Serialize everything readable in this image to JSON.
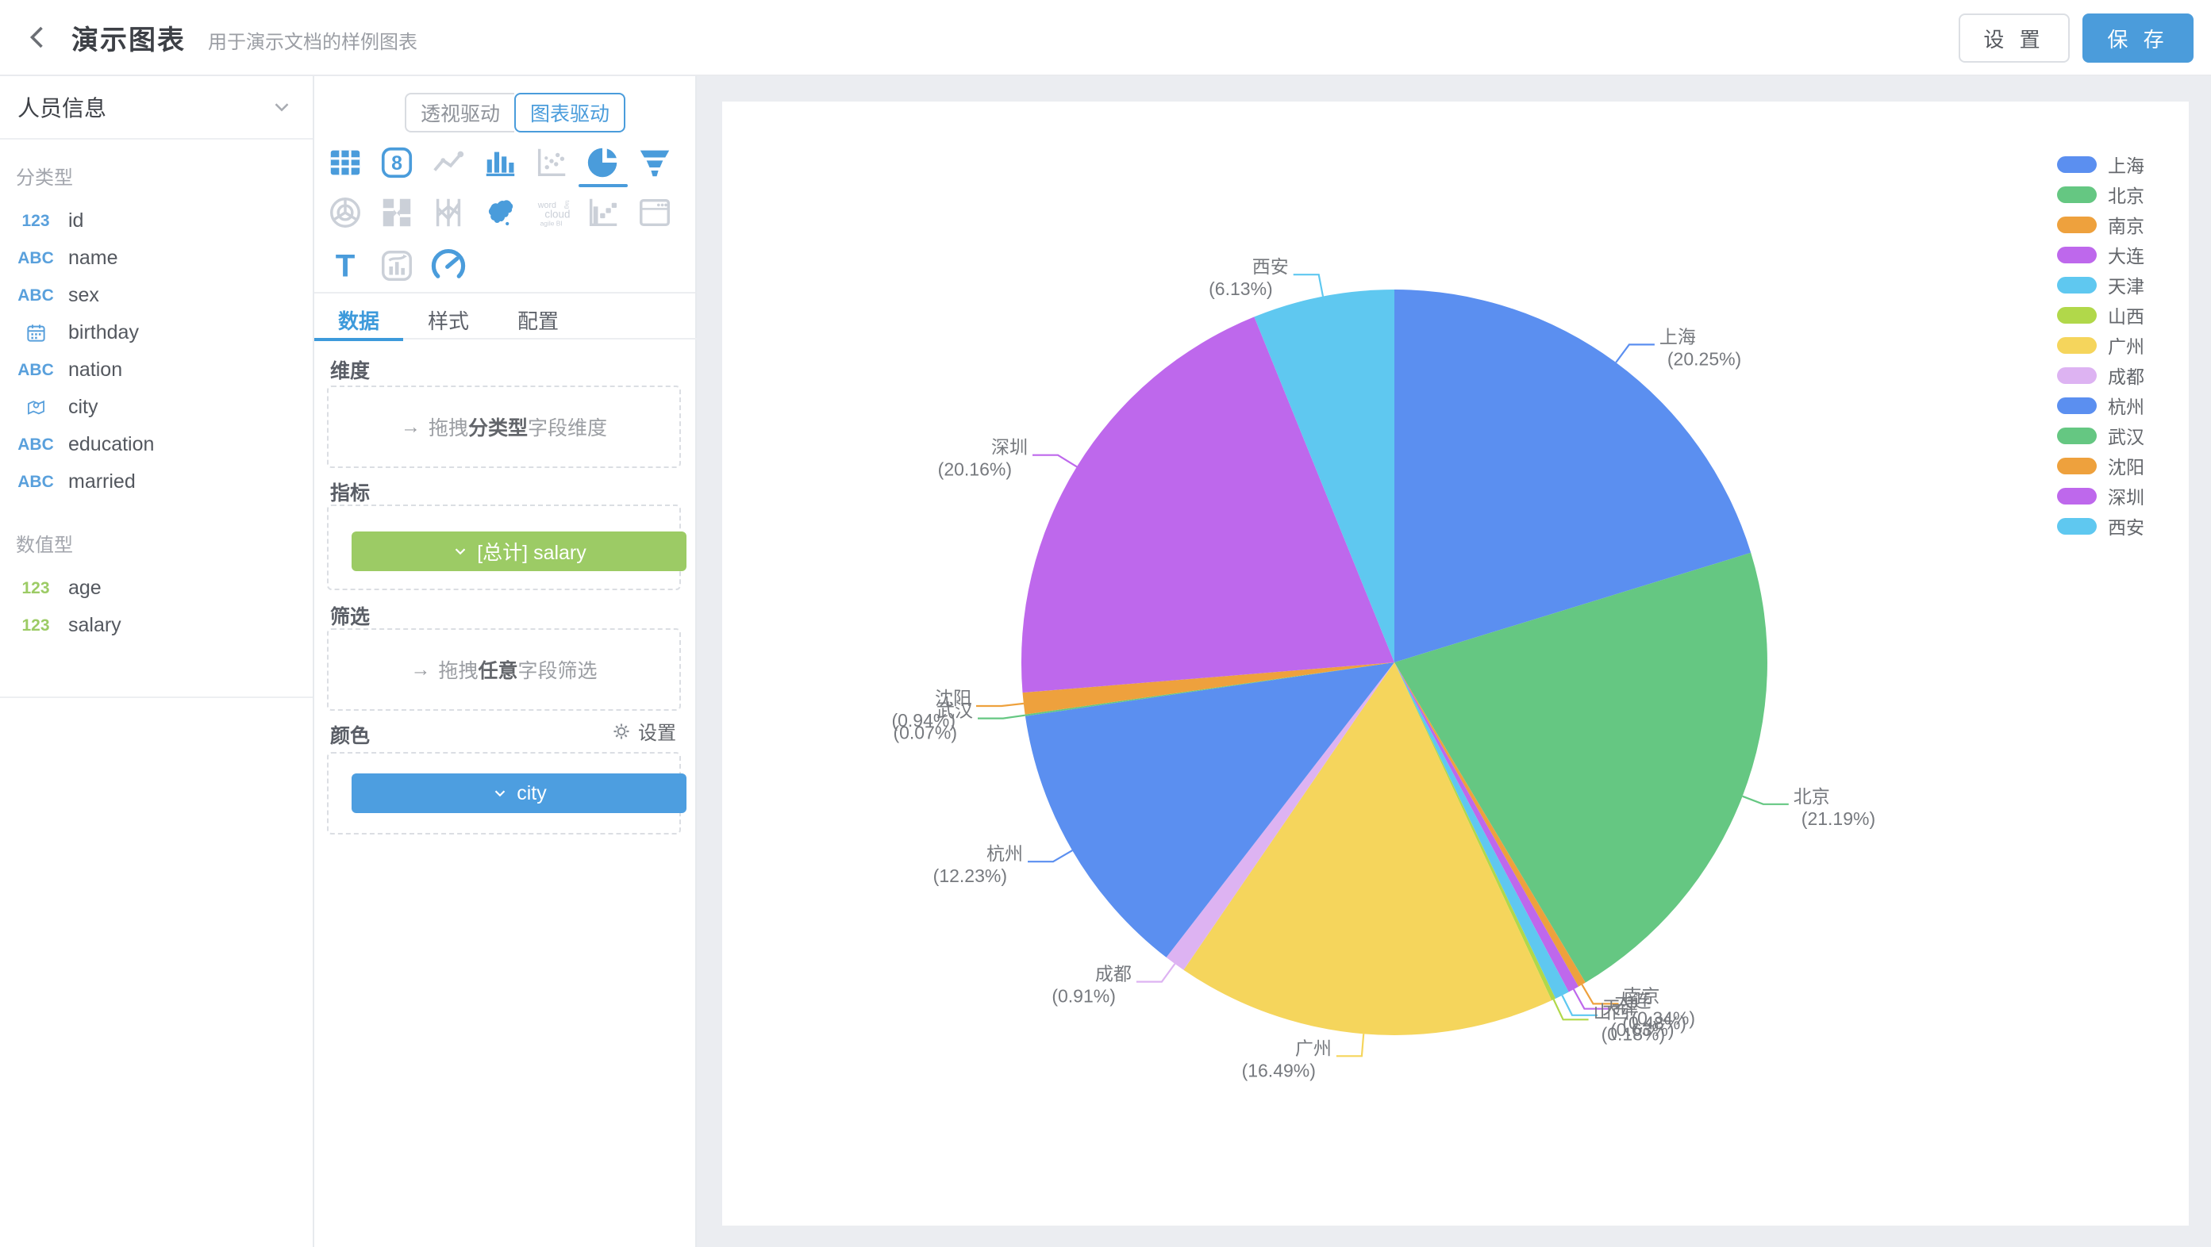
{
  "header": {
    "title": "演示图表",
    "subtitle": "用于演示文档的样例图表",
    "settings_label": "设 置",
    "save_label": "保 存"
  },
  "sidebar": {
    "dataset_name": "人员信息",
    "categorical": {
      "label": "分类型",
      "fields": [
        {
          "icon": "123",
          "icon_kind": "num-blue",
          "label": "id"
        },
        {
          "icon": "ABC",
          "icon_kind": "text",
          "label": "name"
        },
        {
          "icon": "ABC",
          "icon_kind": "text",
          "label": "sex"
        },
        {
          "icon": "calendar",
          "icon_kind": "date",
          "label": "birthday"
        },
        {
          "icon": "ABC",
          "icon_kind": "text",
          "label": "nation"
        },
        {
          "icon": "map-pin",
          "icon_kind": "geo",
          "label": "city"
        },
        {
          "icon": "ABC",
          "icon_kind": "text",
          "label": "education"
        },
        {
          "icon": "ABC",
          "icon_kind": "text",
          "label": "married"
        }
      ]
    },
    "numeric": {
      "label": "数值型",
      "fields": [
        {
          "icon": "123",
          "icon_kind": "num-green",
          "label": "age"
        },
        {
          "icon": "123",
          "icon_kind": "num-green",
          "label": "salary"
        }
      ]
    }
  },
  "panel": {
    "mode_toggle": {
      "options": [
        "透视驱动",
        "图表驱动"
      ],
      "active": "图表驱动"
    },
    "chart_types": [
      {
        "name": "table-chart",
        "state": "enabled"
      },
      {
        "name": "metric-card",
        "state": "enabled"
      },
      {
        "name": "line-chart",
        "state": "disabled"
      },
      {
        "name": "bar-chart",
        "state": "enabled"
      },
      {
        "name": "scatter-chart",
        "state": "disabled"
      },
      {
        "name": "pie-chart",
        "state": "selected"
      },
      {
        "name": "funnel-chart",
        "state": "enabled"
      },
      {
        "name": "radar-chart",
        "state": "disabled"
      },
      {
        "name": "sankey-chart",
        "state": "disabled"
      },
      {
        "name": "parallel-chart",
        "state": "disabled"
      },
      {
        "name": "china-map",
        "state": "enabled"
      },
      {
        "name": "word-cloud",
        "state": "disabled"
      },
      {
        "name": "waterfall-chart",
        "state": "disabled"
      },
      {
        "name": "iframe-widget",
        "state": "disabled"
      },
      {
        "name": "text-widget",
        "state": "enabled"
      },
      {
        "name": "combo-chart",
        "state": "disabled"
      },
      {
        "name": "gauge-chart",
        "state": "enabled"
      }
    ],
    "tabs": {
      "items": [
        "数据",
        "样式",
        "配置"
      ],
      "active": "数据"
    },
    "dimension": {
      "label": "维度",
      "placeholder_prefix": "拖拽",
      "placeholder_bold": "分类型",
      "placeholder_suffix": "字段维度"
    },
    "metric": {
      "label": "指标",
      "pill": "[总计] salary",
      "pill_color": "#9CCB65"
    },
    "filter": {
      "label": "筛选",
      "placeholder_prefix": "拖拽",
      "placeholder_bold": "任意",
      "placeholder_suffix": "字段筛选"
    },
    "color": {
      "label": "颜色",
      "settings_label": "设置",
      "pill": "city",
      "pill_color": "#4D9EE0"
    }
  },
  "chart_data": {
    "type": "pie",
    "category_field": "city",
    "value_field": "salary",
    "categories": [
      "上海",
      "北京",
      "南京",
      "大连",
      "天津",
      "山西",
      "广州",
      "成都",
      "杭州",
      "武汉",
      "沈阳",
      "深圳",
      "西安"
    ],
    "values_percent": [
      20.25,
      21.19,
      0.34,
      0.48,
      0.63,
      0.18,
      16.49,
      0.91,
      12.23,
      0.07,
      0.94,
      20.16,
      6.13
    ],
    "label_format": "{name}\n({percent}%)",
    "legend_position": "right",
    "palette": [
      "#5B8FF0",
      "#65C782",
      "#EEA13D",
      "#BE68EC",
      "#5FC8F0",
      "#B1D84A",
      "#F5D55C",
      "#DDB3F2"
    ],
    "start_angle_deg": 0,
    "direction": "clockwise"
  }
}
